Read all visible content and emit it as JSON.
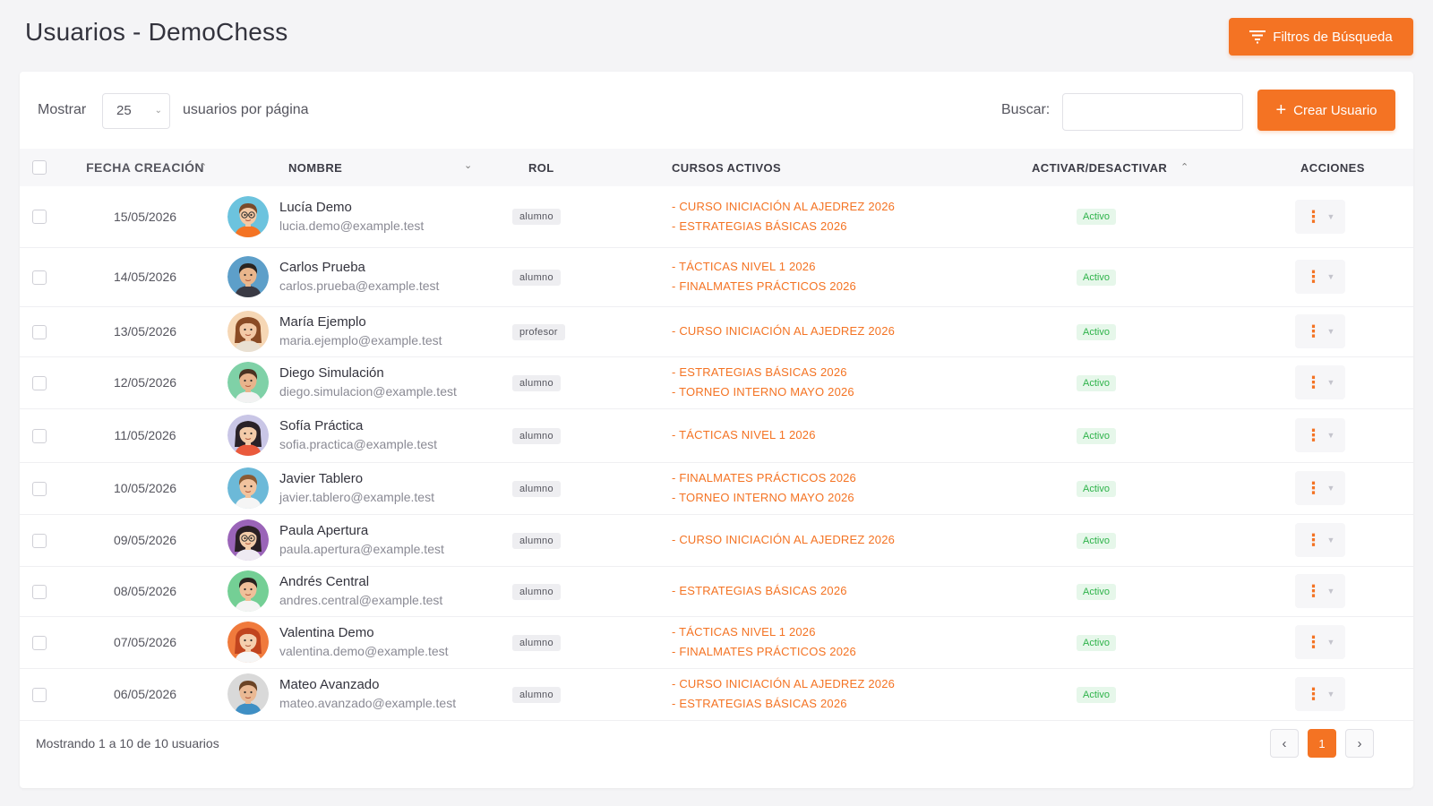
{
  "header": {
    "title": "Usuarios - DemoChess",
    "filters_button": "Filtros de Búsqueda"
  },
  "toolbar": {
    "show_label": "Mostrar",
    "page_size": "25",
    "per_page_label": "usuarios por página",
    "search_label": "Buscar:",
    "search_value": "",
    "create_button": "Crear Usuario"
  },
  "table": {
    "columns": [
      "FECHA CREACIÓN",
      "NOMBRE",
      "ROL",
      "CURSOS ACTIVOS",
      "ACTIVAR/DESACTIVAR",
      "ACCIONES"
    ],
    "rows": [
      {
        "date": "15/05/2026",
        "name": "Lucía Demo",
        "email": "lucia.demo@example.test",
        "role": "alumno",
        "courses": [
          "- CURSO INICIACIÓN AL AJEDREZ 2026",
          "- ESTRATEGIAS BÁSICAS 2026"
        ],
        "status": "Activo",
        "avatar": {
          "bg": "#6cc3de",
          "skin": "#f5c9a4",
          "hair": "#7a4a2a",
          "shirt": "#f47323",
          "glasses": true,
          "long_hair": false
        }
      },
      {
        "date": "14/05/2026",
        "name": "Carlos Prueba",
        "email": "carlos.prueba@example.test",
        "role": "alumno",
        "courses": [
          "- TÁCTICAS NIVEL 1 2026",
          "- FINALMATES PRÁCTICOS 2026"
        ],
        "status": "Activo",
        "avatar": {
          "bg": "#5d9fc9",
          "skin": "#e9b68c",
          "hair": "#2a2420",
          "shirt": "#3a3a44",
          "glasses": false,
          "long_hair": false
        }
      },
      {
        "date": "13/05/2026",
        "name": "María Ejemplo",
        "email": "maria.ejemplo@example.test",
        "role": "profesor",
        "courses": [
          "- CURSO INICIACIÓN AL AJEDREZ 2026"
        ],
        "status": "Activo",
        "avatar": {
          "bg": "#f6d7b5",
          "skin": "#f3c9a6",
          "hair": "#8a4b25",
          "shirt": "#e9e0d2",
          "glasses": false,
          "long_hair": true
        }
      },
      {
        "date": "12/05/2026",
        "name": "Diego Simulación",
        "email": "diego.simulacion@example.test",
        "role": "alumno",
        "courses": [
          "- ESTRATEGIAS BÁSICAS 2026",
          "- TORNEO INTERNO MAYO 2026"
        ],
        "status": "Activo",
        "avatar": {
          "bg": "#7fd1a7",
          "skin": "#e8b48c",
          "hair": "#4a3322",
          "shirt": "#f2f2f2",
          "glasses": false,
          "long_hair": false
        }
      },
      {
        "date": "11/05/2026",
        "name": "Sofía Práctica",
        "email": "sofia.practica@example.test",
        "role": "alumno",
        "courses": [
          "- TÁCTICAS NIVEL 1 2026"
        ],
        "status": "Activo",
        "avatar": {
          "bg": "#c9c6e6",
          "skin": "#f3cba9",
          "hair": "#2a2228",
          "shirt": "#ea5a3c",
          "glasses": false,
          "long_hair": true
        }
      },
      {
        "date": "10/05/2026",
        "name": "Javier Tablero",
        "email": "javier.tablero@example.test",
        "role": "alumno",
        "courses": [
          "- FINALMATES PRÁCTICOS 2026",
          "- TORNEO INTERNO MAYO 2026"
        ],
        "status": "Activo",
        "avatar": {
          "bg": "#6cb9d8",
          "skin": "#f1c39e",
          "hair": "#8a5a33",
          "shirt": "#f5f5f5",
          "glasses": false,
          "long_hair": false
        }
      },
      {
        "date": "09/05/2026",
        "name": "Paula Apertura",
        "email": "paula.apertura@example.test",
        "role": "alumno",
        "courses": [
          "- CURSO INICIACIÓN AL AJEDREZ 2026"
        ],
        "status": "Activo",
        "avatar": {
          "bg": "#9a64b8",
          "skin": "#f4cdaa",
          "hair": "#2a2024",
          "shirt": "#eeeaf2",
          "glasses": true,
          "long_hair": true
        }
      },
      {
        "date": "08/05/2026",
        "name": "Andrés Central",
        "email": "andres.central@example.test",
        "role": "alumno",
        "courses": [
          "- ESTRATEGIAS BÁSICAS 2026"
        ],
        "status": "Activo",
        "avatar": {
          "bg": "#74cf95",
          "skin": "#f0c09a",
          "hair": "#2a2420",
          "shirt": "#f4f4f4",
          "glasses": false,
          "long_hair": false
        }
      },
      {
        "date": "07/05/2026",
        "name": "Valentina Demo",
        "email": "valentina.demo@example.test",
        "role": "alumno",
        "courses": [
          "- TÁCTICAS NIVEL 1 2026",
          "- FINALMATES PRÁCTICOS 2026"
        ],
        "status": "Activo",
        "avatar": {
          "bg": "#f07a3c",
          "skin": "#f5cfae",
          "hair": "#c1441e",
          "shirt": "#f6f6f6",
          "glasses": false,
          "long_hair": true
        }
      },
      {
        "date": "06/05/2026",
        "name": "Mateo Avanzado",
        "email": "mateo.avanzado@example.test",
        "role": "alumno",
        "courses": [
          "- CURSO INICIACIÓN AL AJEDREZ 2026",
          "- ESTRATEGIAS BÁSICAS 2026"
        ],
        "status": "Activo",
        "avatar": {
          "bg": "#d9d9d9",
          "skin": "#eab994",
          "hair": "#6b4426",
          "shirt": "#3f8fc4",
          "glasses": false,
          "long_hair": false
        }
      }
    ]
  },
  "footer": {
    "summary": "Mostrando 1 a 10 de 10 usuarios",
    "current_page": "1"
  },
  "icons": {
    "filter": "filter-lines-icon",
    "plus": "plus-icon",
    "sort": "sort-chevron-icon",
    "actions": "vertical-dots-icon",
    "prev": "chevron-left-icon",
    "next": "chevron-right-icon"
  },
  "colors": {
    "accent": "#f47323",
    "status_active_bg": "#e6f7ea",
    "status_active_text": "#2eb34a"
  }
}
